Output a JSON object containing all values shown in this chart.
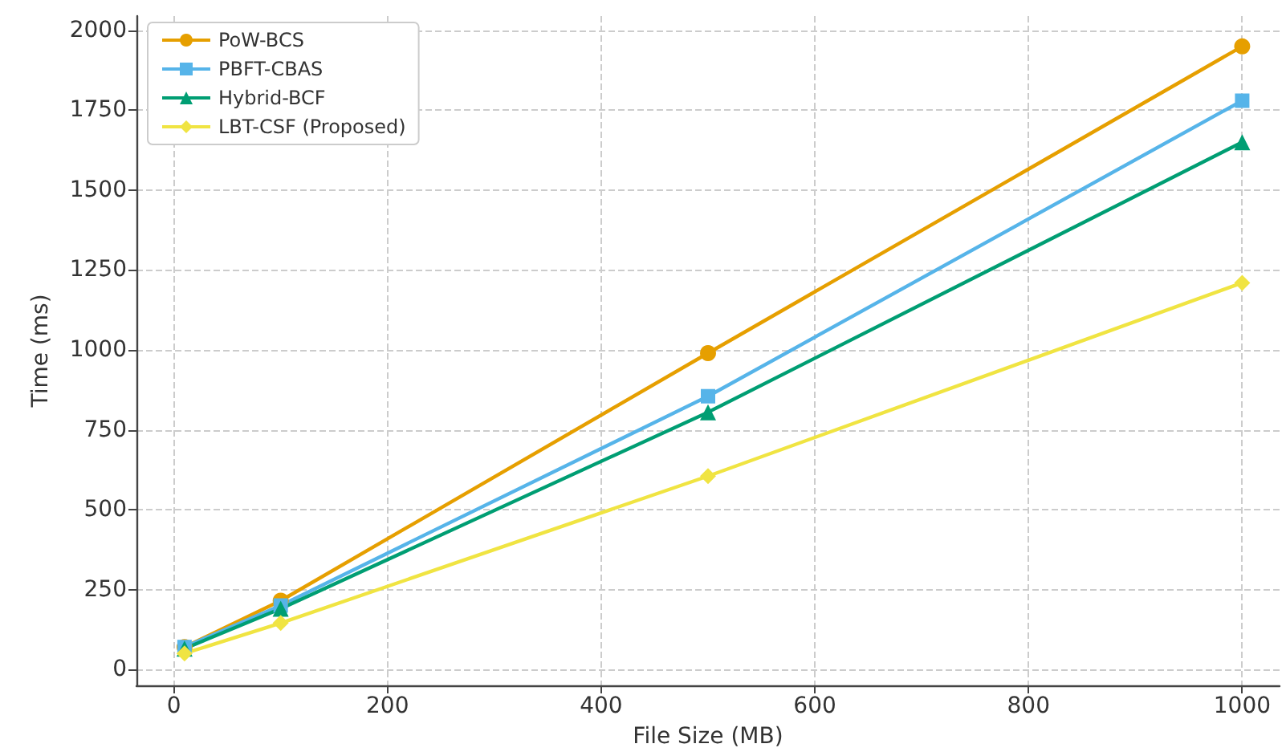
{
  "chart_data": {
    "type": "line",
    "xlabel": "File Size (MB)",
    "ylabel": "Time (ms)",
    "x": [
      10,
      100,
      500,
      1000
    ],
    "series": [
      {
        "name": "PoW-BCS",
        "color": "#e69f00",
        "marker": "circle",
        "values": [
          70,
          215,
          990,
          1950
        ]
      },
      {
        "name": "PBFT-CBAS",
        "color": "#56b4e9",
        "marker": "square",
        "values": [
          70,
          200,
          855,
          1780
        ]
      },
      {
        "name": "Hybrid-BCF",
        "color": "#009e73",
        "marker": "triangle",
        "values": [
          65,
          190,
          805,
          1650
        ]
      },
      {
        "name": "LBT-CSF (Proposed)",
        "color": "#f0e442",
        "marker": "diamond",
        "values": [
          50,
          145,
          605,
          1210
        ]
      }
    ],
    "xlim": [
      -35,
      1035
    ],
    "xticks": [
      0,
      200,
      400,
      600,
      800,
      1000
    ],
    "ylim": [
      -50,
      2045
    ],
    "yticks": [
      0,
      250,
      500,
      750,
      1000,
      1250,
      1500,
      1750,
      2000
    ],
    "grid": true,
    "legend": "top left"
  }
}
